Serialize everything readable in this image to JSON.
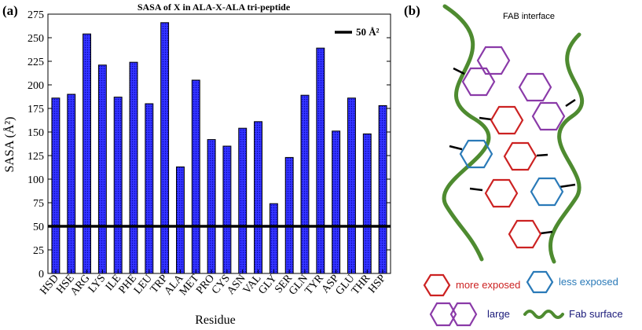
{
  "panels": {
    "a": "(a)",
    "b": "(b)"
  },
  "chart_data": {
    "type": "bar",
    "title": "SASA of X in ALA-X-ALA tri-peptide",
    "xlabel": "Residue",
    "ylabel": "SASA (Å²)",
    "ylim": [
      0,
      275
    ],
    "yticks": [
      0,
      25,
      50,
      75,
      100,
      125,
      150,
      175,
      200,
      225,
      250,
      275
    ],
    "categories": [
      "HSD",
      "HSE",
      "ARG",
      "LYS",
      "ILE",
      "PHE",
      "LEU",
      "TRP",
      "ALA",
      "MET",
      "PRO",
      "CYS",
      "ASN",
      "VAL",
      "GLY",
      "SER",
      "GLN",
      "TYR",
      "ASP",
      "GLU",
      "THR",
      "HSP"
    ],
    "values": [
      186,
      190,
      254,
      221,
      187,
      224,
      180,
      266,
      113,
      205,
      142,
      135,
      154,
      161,
      74,
      123,
      189,
      239,
      151,
      186,
      148,
      178
    ],
    "reference_line": {
      "value": 50,
      "label": "50 Å²"
    },
    "bar_color": "#1f1fff",
    "line_color": "#000000",
    "legend_position": "top-right",
    "grid": false
  },
  "diagram": {
    "title": "FAB interface",
    "legend": {
      "more_exposed": "more exposed",
      "less_exposed": "less exposed",
      "large": "large",
      "fab_surface": "Fab surface"
    },
    "colors": {
      "more_exposed": "#cc2222",
      "less_exposed": "#2a7ab8",
      "large": "#8a3aa8",
      "fab_surface": "#4e8b30",
      "large_text": "#1a1a7a",
      "surface_text": "#1a1a7a"
    }
  }
}
